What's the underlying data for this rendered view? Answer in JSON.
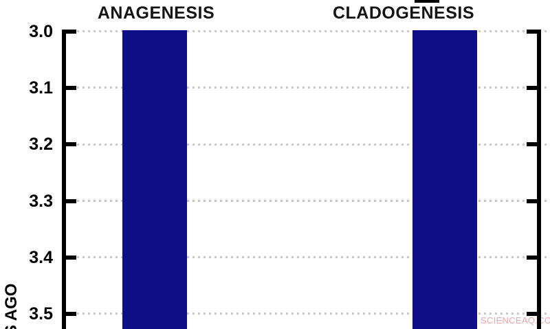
{
  "chart_data": {
    "type": "bar",
    "title": "",
    "columns": [
      {
        "title": "ANAGENESIS"
      },
      {
        "title": "CLADOGENESIS"
      }
    ],
    "y_axis": {
      "tick_labels": [
        "3.0",
        "3.1",
        "3.2",
        "3.3",
        "3.4",
        "3.5"
      ],
      "tick_values": [
        3.0,
        3.1,
        3.2,
        3.3,
        3.4,
        3.5
      ],
      "label_visible_fragment": "S AGO",
      "direction": "values increase downward (time, millions of years ago)",
      "visible_range": [
        3.0,
        3.53
      ],
      "grid": "dotted horizontal line at each 0.1 tick, spanning full width"
    },
    "bars": [
      {
        "column": "ANAGENESIS",
        "start_value": 3.0,
        "end_value": 3.53,
        "cropped_at_bottom": true
      },
      {
        "column": "CLADOGENESIS",
        "start_value": 3.0,
        "end_value": 3.53,
        "cropped_at_bottom": true
      }
    ],
    "colors": {
      "bar_fill": "#0e0e86",
      "axis": "#000000",
      "grid_dots": "#c9c9c9",
      "title_text": "#141414"
    },
    "legend": "none"
  },
  "watermark": {
    "text": "SCIENCEAQ.COM",
    "color": "#f0a4a4"
  }
}
